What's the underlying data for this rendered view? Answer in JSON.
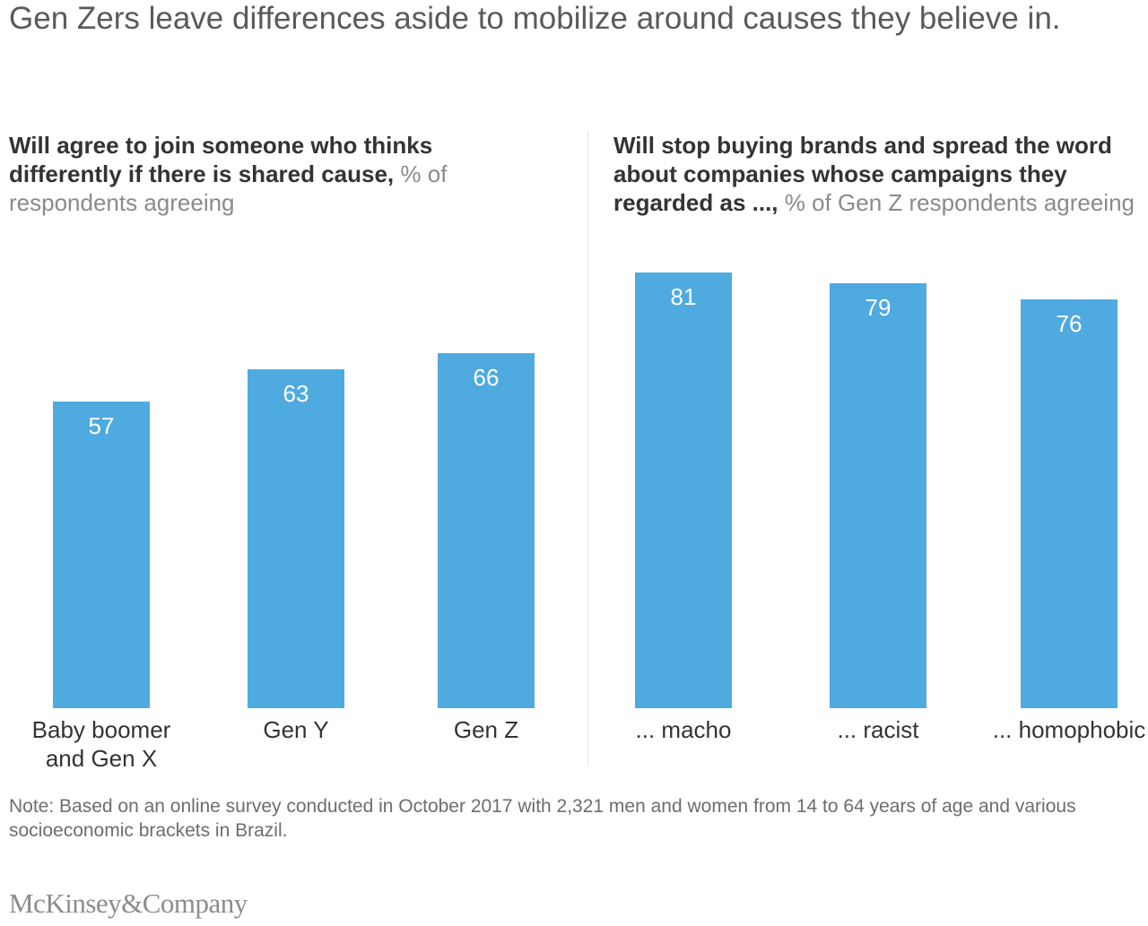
{
  "title": "Gen Zers leave differences aside to mobilize around causes they believe in.",
  "chart_data": [
    {
      "type": "bar",
      "title_bold": "Will agree to join someone who thinks differently if there is shared cause,",
      "title_unit": "% of respondents agreeing",
      "categories": [
        "Baby boomer and Gen X",
        "Gen Y",
        "Gen Z"
      ],
      "values": [
        57,
        63,
        66
      ],
      "value_labels": [
        "57",
        "63",
        "66"
      ],
      "ylim": [
        0,
        100
      ],
      "color": "#4eaadf"
    },
    {
      "type": "bar",
      "title_bold": "Will stop buying brands and spread the word about companies whose campaigns they regarded as ...,",
      "title_unit": "% of Gen Z respondents agreeing",
      "categories": [
        "... macho",
        "... racist",
        "... homophobic"
      ],
      "values": [
        81,
        79,
        76
      ],
      "value_labels": [
        "81",
        "79",
        "76"
      ],
      "ylim": [
        0,
        100
      ],
      "color": "#4eaadf"
    }
  ],
  "note": "Note: Based on an online survey conducted in October 2017 with 2,321 men and women from 14 to 64 years of age and various socioeconomic brackets in Brazil.",
  "logo": "McKinsey&Company"
}
